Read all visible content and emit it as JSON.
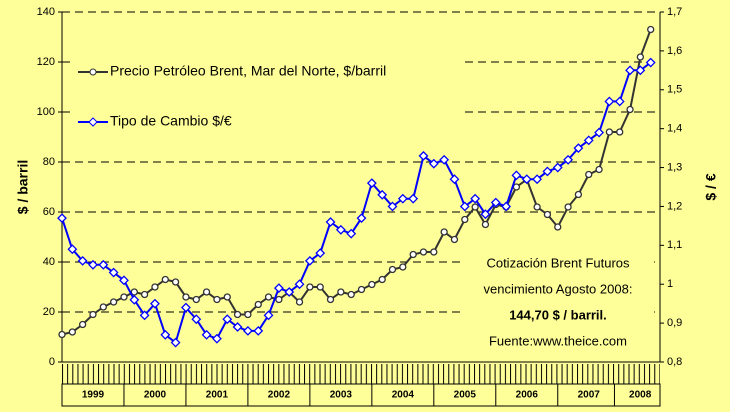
{
  "chart_data": {
    "type": "line",
    "x": [
      1999.0,
      1999.167,
      1999.333,
      1999.5,
      1999.667,
      1999.833,
      2000.0,
      2000.167,
      2000.333,
      2000.5,
      2000.667,
      2000.833,
      2001.0,
      2001.167,
      2001.333,
      2001.5,
      2001.667,
      2001.833,
      2002.0,
      2002.167,
      2002.333,
      2002.5,
      2002.667,
      2002.833,
      2003.0,
      2003.167,
      2003.333,
      2003.5,
      2003.667,
      2003.833,
      2004.0,
      2004.167,
      2004.333,
      2004.5,
      2004.667,
      2004.833,
      2005.0,
      2005.167,
      2005.333,
      2005.5,
      2005.667,
      2005.833,
      2006.0,
      2006.167,
      2006.333,
      2006.5,
      2006.667,
      2006.833,
      2007.0,
      2007.167,
      2007.333,
      2007.5,
      2007.667,
      2007.833,
      2008.0,
      2008.167,
      2008.333,
      2008.5
    ],
    "xlim": [
      1999,
      2008.65
    ],
    "xticks": [
      {
        "value": 1999.5,
        "label": "1999"
      },
      {
        "value": 2000.5,
        "label": "2000"
      },
      {
        "value": 2001.5,
        "label": "2001"
      },
      {
        "value": 2002.5,
        "label": "2002"
      },
      {
        "value": 2003.5,
        "label": "2003"
      },
      {
        "value": 2004.5,
        "label": "2004"
      },
      {
        "value": 2005.5,
        "label": "2005"
      },
      {
        "value": 2006.5,
        "label": "2006"
      },
      {
        "value": 2007.5,
        "label": "2007"
      },
      {
        "value": 2008.33,
        "label": "2008"
      }
    ],
    "ylabel": "$ / barril",
    "y2label": "$ / €",
    "ylim": [
      0,
      140
    ],
    "yticks": [
      0,
      20,
      40,
      60,
      80,
      100,
      120,
      140
    ],
    "y2lim": [
      0.8,
      1.7
    ],
    "y2ticks": [
      {
        "value": 0.8,
        "label": "0,8"
      },
      {
        "value": 0.9,
        "label": "0,9"
      },
      1,
      {
        "value": 1.1,
        "label": "1,1"
      },
      {
        "value": 1.2,
        "label": "1,2"
      },
      {
        "value": 1.3,
        "label": "1,3"
      },
      {
        "value": 1.4,
        "label": "1,4"
      },
      {
        "value": 1.5,
        "label": "1,5"
      },
      {
        "value": 1.6,
        "label": "1,6"
      },
      {
        "value": 1.7,
        "label": "1,7"
      }
    ],
    "grid": true,
    "series": [
      {
        "name": "Precio Petróleo Brent, Mar del Norte, $/barril",
        "color": "#333333",
        "marker": "circle",
        "values": [
          11,
          12,
          15,
          19,
          22,
          24,
          26,
          28,
          27,
          30,
          33,
          32,
          26,
          25,
          28,
          25,
          26,
          19,
          19,
          23,
          26,
          25,
          28,
          24,
          30,
          30,
          25,
          28,
          27,
          29,
          31,
          33,
          37,
          38,
          43,
          44,
          44,
          52,
          49,
          57,
          62,
          55,
          63,
          62,
          70,
          73,
          62,
          59,
          54,
          62,
          67,
          75,
          77,
          92,
          92,
          101,
          122,
          133
        ]
      },
      {
        "name": "Tipo de Cambio $/€",
        "color": "#0000ff",
        "marker": "diamond",
        "axis": "y2",
        "values": [
          1.17,
          1.09,
          1.06,
          1.05,
          1.05,
          1.03,
          1.01,
          0.96,
          0.92,
          0.95,
          0.87,
          0.85,
          0.94,
          0.91,
          0.87,
          0.86,
          0.91,
          0.89,
          0.88,
          0.88,
          0.92,
          0.99,
          0.98,
          1.0,
          1.06,
          1.08,
          1.16,
          1.14,
          1.13,
          1.17,
          1.26,
          1.23,
          1.2,
          1.22,
          1.22,
          1.33,
          1.31,
          1.32,
          1.27,
          1.2,
          1.22,
          1.18,
          1.21,
          1.2,
          1.28,
          1.27,
          1.27,
          1.29,
          1.3,
          1.32,
          1.35,
          1.37,
          1.39,
          1.47,
          1.47,
          1.55,
          1.55,
          1.57
        ]
      }
    ],
    "annotations": [
      "Cotización Brent Futuros",
      "vencimiento Agosto 2008:",
      "144,70 $ / barril.",
      "Fuente:www.theice.com"
    ]
  }
}
